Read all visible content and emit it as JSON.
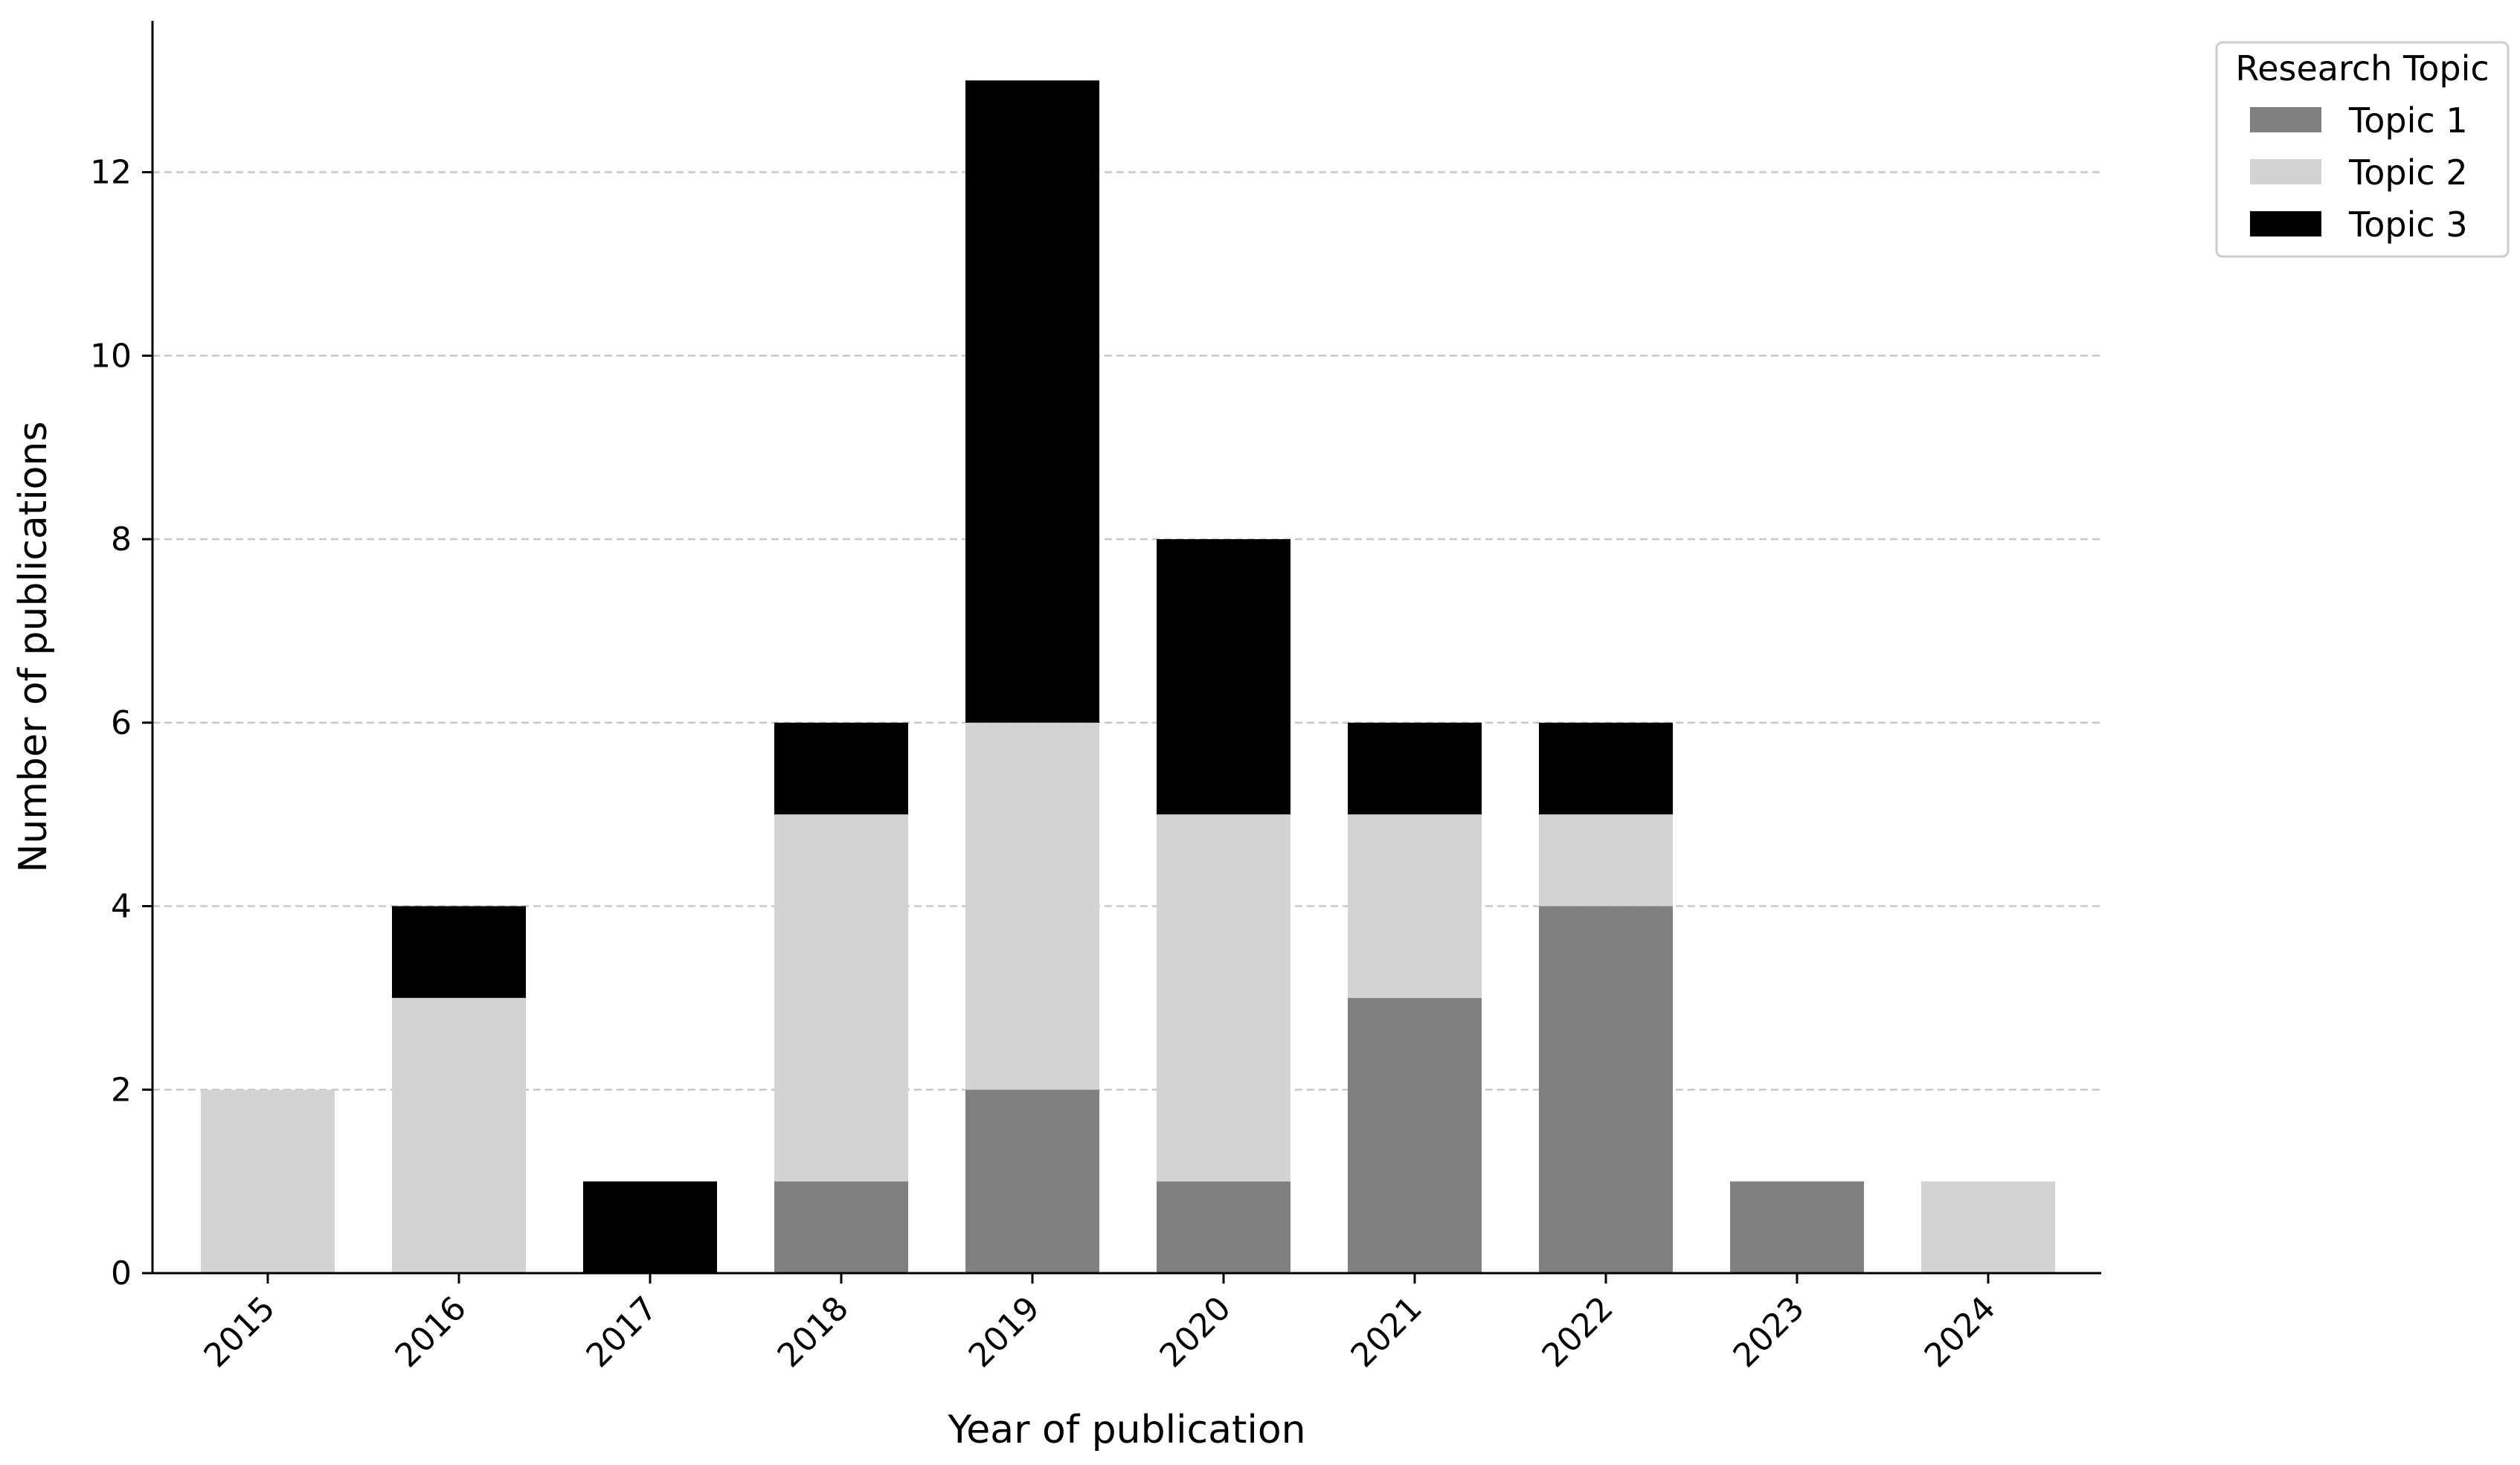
{
  "chart_data": {
    "type": "bar",
    "stacked": true,
    "categories": [
      "2015",
      "2016",
      "2017",
      "2018",
      "2019",
      "2020",
      "2021",
      "2022",
      "2023",
      "2024"
    ],
    "series": [
      {
        "name": "Topic 1",
        "color": "#808080",
        "values": [
          0,
          0,
          0,
          1,
          2,
          1,
          3,
          4,
          1,
          0
        ]
      },
      {
        "name": "Topic 2",
        "color": "#d3d3d3",
        "values": [
          2,
          3,
          0,
          4,
          4,
          4,
          2,
          1,
          0,
          1
        ]
      },
      {
        "name": "Topic 3",
        "color": "#000000",
        "values": [
          0,
          1,
          1,
          1,
          7,
          3,
          1,
          1,
          0,
          0
        ]
      }
    ],
    "xlabel": "Year of publication",
    "ylabel": "Number of publications",
    "ylim": [
      0,
      13.65
    ],
    "yticks": [
      0,
      2,
      4,
      6,
      8,
      10,
      12
    ],
    "grid": "horizontal dashed",
    "legend": {
      "title": "Research Topic",
      "placement": "outside-top-right"
    }
  }
}
